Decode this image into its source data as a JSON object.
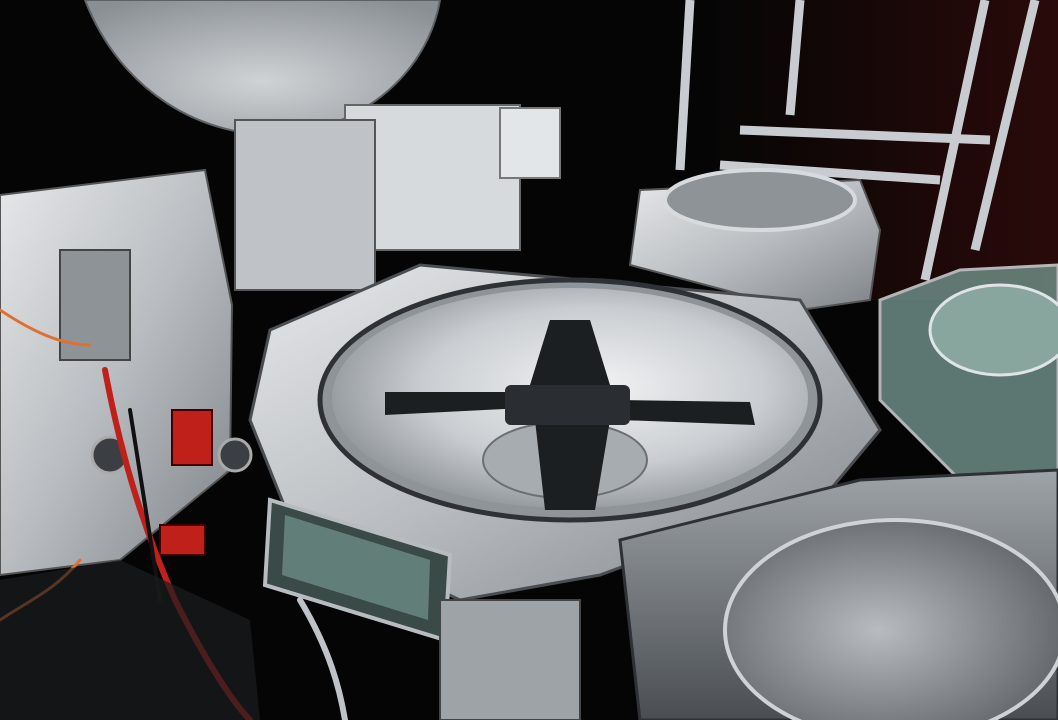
{
  "scene": {
    "subject": "semiconductor-vacuum-cluster-tool",
    "colors": {
      "background": "#050505",
      "backdrop_red": "#2a0a0a",
      "aluminum_light": "#d9dcdf",
      "aluminum_mid": "#a9aeb3",
      "aluminum_dark": "#6e7378",
      "chamber_inner": "#c7cbcf",
      "robot_blade": "#1c1f22",
      "glass_green": "#6c8c84",
      "cable_red": "#c0201a",
      "cable_orange": "#e07030"
    }
  }
}
